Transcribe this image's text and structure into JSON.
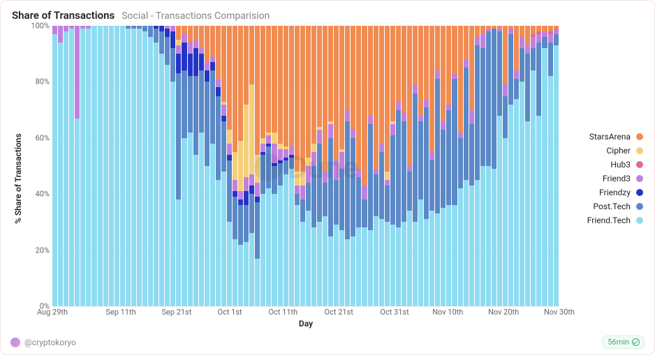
{
  "header": {
    "title": "Share of Transactions",
    "subtitle": "Social - Transactions Comparision"
  },
  "chart": {
    "type": "stacked-bar-100pct",
    "y_label": "% Share of Transactions",
    "x_label": "Day",
    "y_ticks": [
      0,
      20,
      40,
      60,
      80,
      100
    ],
    "y_tick_suffix": "%",
    "ylim": [
      0,
      100
    ],
    "background_color": "#ffffff",
    "grid_color": "#eeeeee",
    "tick_fontsize": 11,
    "label_fontsize": 12,
    "x_ticks": [
      {
        "pos": 0.0,
        "label": "Aug 29th"
      },
      {
        "pos": 0.135,
        "label": "Sep 11th"
      },
      {
        "pos": 0.245,
        "label": "Sep 21st"
      },
      {
        "pos": 0.35,
        "label": "Oct 1st"
      },
      {
        "pos": 0.455,
        "label": "Oct 11th"
      },
      {
        "pos": 0.565,
        "label": "Oct 21st"
      },
      {
        "pos": 0.675,
        "label": "Oct 31st"
      },
      {
        "pos": 0.78,
        "label": "Nov 10th"
      },
      {
        "pos": 0.89,
        "label": "Nov 20th"
      },
      {
        "pos": 1.0,
        "label": "Nov 30th"
      }
    ],
    "series": [
      {
        "key": "friend_tech",
        "label": "Friend.Tech",
        "color": "#8fdcf2"
      },
      {
        "key": "post_tech",
        "label": "Post.Tech",
        "color": "#5b88c6"
      },
      {
        "key": "friendzy",
        "label": "Friendzy",
        "color": "#2334c7"
      },
      {
        "key": "friend3",
        "label": "Friend3",
        "color": "#c180e0"
      },
      {
        "key": "hub3",
        "label": "Hub3",
        "color": "#e06b8b"
      },
      {
        "key": "cipher",
        "label": "Cipher",
        "color": "#f4ce7a"
      },
      {
        "key": "stars_arena",
        "label": "StarsArena",
        "color": "#f08c52"
      }
    ],
    "legend_order": [
      "stars_arena",
      "cipher",
      "hub3",
      "friend3",
      "friendzy",
      "post_tech",
      "friend_tech"
    ],
    "days": [
      {
        "friend_tech": 97,
        "post_tech": 0,
        "friendzy": 0,
        "friend3": 3,
        "hub3": 0,
        "cipher": 0,
        "stars_arena": 0
      },
      {
        "friend_tech": 94,
        "post_tech": 0,
        "friendzy": 0,
        "friend3": 6,
        "hub3": 0,
        "cipher": 0,
        "stars_arena": 0
      },
      {
        "friend_tech": 98,
        "post_tech": 0,
        "friendzy": 0,
        "friend3": 2,
        "hub3": 0,
        "cipher": 0,
        "stars_arena": 0
      },
      {
        "friend_tech": 99,
        "post_tech": 0,
        "friendzy": 0,
        "friend3": 1,
        "hub3": 0,
        "cipher": 0,
        "stars_arena": 0
      },
      {
        "friend_tech": 67,
        "post_tech": 0,
        "friendzy": 0,
        "friend3": 33,
        "hub3": 0,
        "cipher": 0,
        "stars_arena": 0
      },
      {
        "friend_tech": 99,
        "post_tech": 0,
        "friendzy": 0,
        "friend3": 1,
        "hub3": 0,
        "cipher": 0,
        "stars_arena": 0
      },
      {
        "friend_tech": 99,
        "post_tech": 0,
        "friendzy": 0,
        "friend3": 1,
        "hub3": 0,
        "cipher": 0,
        "stars_arena": 0
      },
      {
        "friend_tech": 100,
        "post_tech": 0,
        "friendzy": 0,
        "friend3": 0,
        "hub3": 0,
        "cipher": 0,
        "stars_arena": 0
      },
      {
        "friend_tech": 100,
        "post_tech": 0,
        "friendzy": 0,
        "friend3": 0,
        "hub3": 0,
        "cipher": 0,
        "stars_arena": 0
      },
      {
        "friend_tech": 100,
        "post_tech": 0,
        "friendzy": 0,
        "friend3": 0,
        "hub3": 0,
        "cipher": 0,
        "stars_arena": 0
      },
      {
        "friend_tech": 100,
        "post_tech": 0,
        "friendzy": 0,
        "friend3": 0,
        "hub3": 0,
        "cipher": 0,
        "stars_arena": 0
      },
      {
        "friend_tech": 100,
        "post_tech": 0,
        "friendzy": 0,
        "friend3": 0,
        "hub3": 0,
        "cipher": 0,
        "stars_arena": 0
      },
      {
        "friend_tech": 100,
        "post_tech": 0,
        "friendzy": 0,
        "friend3": 0,
        "hub3": 0,
        "cipher": 0,
        "stars_arena": 0
      },
      {
        "friend_tech": 99,
        "post_tech": 1,
        "friendzy": 0,
        "friend3": 0,
        "hub3": 0,
        "cipher": 0,
        "stars_arena": 0
      },
      {
        "friend_tech": 99,
        "post_tech": 1,
        "friendzy": 0,
        "friend3": 0,
        "hub3": 0,
        "cipher": 0,
        "stars_arena": 0
      },
      {
        "friend_tech": 99,
        "post_tech": 1,
        "friendzy": 0,
        "friend3": 0,
        "hub3": 0,
        "cipher": 0,
        "stars_arena": 0
      },
      {
        "friend_tech": 98,
        "post_tech": 2,
        "friendzy": 0,
        "friend3": 0,
        "hub3": 0,
        "cipher": 0,
        "stars_arena": 0
      },
      {
        "friend_tech": 96,
        "post_tech": 4,
        "friendzy": 0,
        "friend3": 0,
        "hub3": 0,
        "cipher": 0,
        "stars_arena": 0
      },
      {
        "friend_tech": 94,
        "post_tech": 5,
        "friendzy": 1,
        "friend3": 0,
        "hub3": 0,
        "cipher": 0,
        "stars_arena": 0
      },
      {
        "friend_tech": 90,
        "post_tech": 8,
        "friendzy": 2,
        "friend3": 0,
        "hub3": 0,
        "cipher": 0,
        "stars_arena": 0
      },
      {
        "friend_tech": 86,
        "post_tech": 10,
        "friendzy": 3,
        "friend3": 1,
        "hub3": 0,
        "cipher": 0,
        "stars_arena": 0
      },
      {
        "friend_tech": 80,
        "post_tech": 12,
        "friendzy": 6,
        "friend3": 2,
        "hub3": 0,
        "cipher": 0,
        "stars_arena": 0
      },
      {
        "friend_tech": 38,
        "post_tech": 45,
        "friendzy": 7,
        "friend3": 3,
        "hub3": 0,
        "cipher": 2,
        "stars_arena": 5
      },
      {
        "friend_tech": 60,
        "post_tech": 24,
        "friendzy": 10,
        "friend3": 3,
        "hub3": 0,
        "cipher": 0,
        "stars_arena": 3
      },
      {
        "friend_tech": 62,
        "post_tech": 20,
        "friendzy": 8,
        "friend3": 4,
        "hub3": 0,
        "cipher": 0,
        "stars_arena": 6
      },
      {
        "friend_tech": 54,
        "post_tech": 28,
        "friendzy": 10,
        "friend3": 3,
        "hub3": 0,
        "cipher": 0,
        "stars_arena": 5
      },
      {
        "friend_tech": 62,
        "post_tech": 22,
        "friendzy": 6,
        "friend3": 2,
        "hub3": 0,
        "cipher": 0,
        "stars_arena": 8
      },
      {
        "friend_tech": 50,
        "post_tech": 30,
        "friendzy": 4,
        "friend3": 3,
        "hub3": 0,
        "cipher": 0,
        "stars_arena": 13
      },
      {
        "friend_tech": 58,
        "post_tech": 26,
        "friendzy": 3,
        "friend3": 2,
        "hub3": 0,
        "cipher": 0,
        "stars_arena": 11
      },
      {
        "friend_tech": 45,
        "post_tech": 30,
        "friendzy": 3,
        "friend3": 3,
        "hub3": 0,
        "cipher": 0,
        "stars_arena": 19
      },
      {
        "friend_tech": 48,
        "post_tech": 18,
        "friendzy": 2,
        "friend3": 4,
        "hub3": 0,
        "cipher": 1,
        "stars_arena": 27
      },
      {
        "friend_tech": 30,
        "post_tech": 22,
        "friendzy": 2,
        "friend3": 4,
        "hub3": 0,
        "cipher": 5,
        "stars_arena": 37
      },
      {
        "friend_tech": 24,
        "post_tech": 15,
        "friendzy": 2,
        "friend3": 4,
        "hub3": 0,
        "cipher": 10,
        "stars_arena": 45
      },
      {
        "friend_tech": 22,
        "post_tech": 14,
        "friendzy": 2,
        "friend3": 3,
        "hub3": 0,
        "cipher": 18,
        "stars_arena": 41
      },
      {
        "friend_tech": 23,
        "post_tech": 13,
        "friendzy": 5,
        "friend3": 5,
        "hub3": 0,
        "cipher": 26,
        "stars_arena": 28
      },
      {
        "friend_tech": 26,
        "post_tech": 14,
        "friendzy": 3,
        "friend3": 4,
        "hub3": 0,
        "cipher": 32,
        "stars_arena": 21
      },
      {
        "friend_tech": 17,
        "post_tech": 20,
        "friendzy": 2,
        "friend3": 5,
        "hub3": 0,
        "cipher": 10,
        "stars_arena": 46
      },
      {
        "friend_tech": 40,
        "post_tech": 14,
        "friendzy": 1,
        "friend3": 3,
        "hub3": 0,
        "cipher": 2,
        "stars_arena": 40
      },
      {
        "friend_tech": 42,
        "post_tech": 15,
        "friendzy": 1,
        "friend3": 3,
        "hub3": 0,
        "cipher": 1,
        "stars_arena": 38
      },
      {
        "friend_tech": 40,
        "post_tech": 10,
        "friendzy": 1,
        "friend3": 7,
        "hub3": 0,
        "cipher": 4,
        "stars_arena": 38
      },
      {
        "friend_tech": 43,
        "post_tech": 8,
        "friendzy": 1,
        "friend3": 4,
        "hub3": 0,
        "cipher": 2,
        "stars_arena": 42
      },
      {
        "friend_tech": 47,
        "post_tech": 5,
        "friendzy": 1,
        "friend3": 3,
        "hub3": 0,
        "cipher": 1,
        "stars_arena": 43
      },
      {
        "friend_tech": 49,
        "post_tech": 4,
        "friendzy": 1,
        "friend3": 3,
        "hub3": 0,
        "cipher": 0,
        "stars_arena": 43
      },
      {
        "friend_tech": 36,
        "post_tech": 4,
        "friendzy": 0,
        "friend3": 3,
        "hub3": 0,
        "cipher": 5,
        "stars_arena": 52
      },
      {
        "friend_tech": 30,
        "post_tech": 8,
        "friendzy": 0,
        "friend3": 5,
        "hub3": 0,
        "cipher": 5,
        "stars_arena": 52
      },
      {
        "friend_tech": 34,
        "post_tech": 10,
        "friendzy": 0,
        "friend3": 6,
        "hub3": 0,
        "cipher": 3,
        "stars_arena": 47
      },
      {
        "friend_tech": 28,
        "post_tech": 22,
        "friendzy": 0,
        "friend3": 5,
        "hub3": 0,
        "cipher": 3,
        "stars_arena": 42
      },
      {
        "friend_tech": 30,
        "post_tech": 28,
        "friendzy": 0,
        "friend3": 5,
        "hub3": 0,
        "cipher": 1,
        "stars_arena": 36
      },
      {
        "friend_tech": 32,
        "post_tech": 12,
        "friendzy": 0,
        "friend3": 4,
        "hub3": 0,
        "cipher": 0,
        "stars_arena": 52
      },
      {
        "friend_tech": 25,
        "post_tech": 35,
        "friendzy": 0,
        "friend3": 5,
        "hub3": 0,
        "cipher": 1,
        "stars_arena": 34
      },
      {
        "friend_tech": 29,
        "post_tech": 16,
        "friendzy": 0,
        "friend3": 7,
        "hub3": 0,
        "cipher": 0,
        "stars_arena": 48
      },
      {
        "friend_tech": 27,
        "post_tech": 22,
        "friendzy": 0,
        "friend3": 6,
        "hub3": 0,
        "cipher": 1,
        "stars_arena": 44
      },
      {
        "friend_tech": 24,
        "post_tech": 42,
        "friendzy": 0,
        "friend3": 4,
        "hub3": 0,
        "cipher": 0,
        "stars_arena": 30
      },
      {
        "friend_tech": 25,
        "post_tech": 35,
        "friendzy": 0,
        "friend3": 3,
        "hub3": 0,
        "cipher": 0,
        "stars_arena": 37
      },
      {
        "friend_tech": 28,
        "post_tech": 18,
        "friendzy": 0,
        "friend3": 3,
        "hub3": 0,
        "cipher": 0,
        "stars_arena": 51
      },
      {
        "friend_tech": 28,
        "post_tech": 10,
        "friendzy": 0,
        "friend3": 5,
        "hub3": 0,
        "cipher": 0,
        "stars_arena": 57
      },
      {
        "friend_tech": 27,
        "post_tech": 38,
        "friendzy": 0,
        "friend3": 3,
        "hub3": 0,
        "cipher": 0,
        "stars_arena": 32
      },
      {
        "friend_tech": 32,
        "post_tech": 15,
        "friendzy": 0,
        "friend3": 2,
        "hub3": 0,
        "cipher": 0,
        "stars_arena": 51
      },
      {
        "friend_tech": 31,
        "post_tech": 24,
        "friendzy": 0,
        "friend3": 3,
        "hub3": 0,
        "cipher": 0,
        "stars_arena": 42
      },
      {
        "friend_tech": 30,
        "post_tech": 13,
        "friendzy": 0,
        "friend3": 2,
        "hub3": 0,
        "cipher": 3,
        "stars_arena": 52
      },
      {
        "friend_tech": 29,
        "post_tech": 32,
        "friendzy": 0,
        "friend3": 4,
        "hub3": 0,
        "cipher": 1,
        "stars_arena": 34
      },
      {
        "friend_tech": 28,
        "post_tech": 42,
        "friendzy": 0,
        "friend3": 3,
        "hub3": 0,
        "cipher": 0,
        "stars_arena": 27
      },
      {
        "friend_tech": 30,
        "post_tech": 36,
        "friendzy": 0,
        "friend3": 3,
        "hub3": 0,
        "cipher": 0,
        "stars_arena": 31
      },
      {
        "friend_tech": 34,
        "post_tech": 14,
        "friendzy": 0,
        "friend3": 2,
        "hub3": 0,
        "cipher": 0,
        "stars_arena": 50
      },
      {
        "friend_tech": 30,
        "post_tech": 46,
        "friendzy": 0,
        "friend3": 3,
        "hub3": 0,
        "cipher": 0,
        "stars_arena": 21
      },
      {
        "friend_tech": 38,
        "post_tech": 28,
        "friendzy": 0,
        "friend3": 2,
        "hub3": 0,
        "cipher": 0,
        "stars_arena": 32
      },
      {
        "friend_tech": 31,
        "post_tech": 40,
        "friendzy": 0,
        "friend3": 3,
        "hub3": 0,
        "cipher": 0,
        "stars_arena": 26
      },
      {
        "friend_tech": 34,
        "post_tech": 18,
        "friendzy": 0,
        "friend3": 3,
        "hub3": 0,
        "cipher": 0,
        "stars_arena": 45
      },
      {
        "friend_tech": 33,
        "post_tech": 48,
        "friendzy": 0,
        "friend3": 3,
        "hub3": 0,
        "cipher": 0,
        "stars_arena": 16
      },
      {
        "friend_tech": 35,
        "post_tech": 28,
        "friendzy": 0,
        "friend3": 3,
        "hub3": 0,
        "cipher": 0,
        "stars_arena": 34
      },
      {
        "friend_tech": 36,
        "post_tech": 34,
        "friendzy": 0,
        "friend3": 2,
        "hub3": 0,
        "cipher": 0,
        "stars_arena": 28
      },
      {
        "friend_tech": 36,
        "post_tech": 45,
        "friendzy": 0,
        "friend3": 2,
        "hub3": 0,
        "cipher": 0,
        "stars_arena": 17
      },
      {
        "friend_tech": 42,
        "post_tech": 18,
        "friendzy": 0,
        "friend3": 2,
        "hub3": 0,
        "cipher": 0,
        "stars_arena": 38
      },
      {
        "friend_tech": 45,
        "post_tech": 40,
        "friendzy": 0,
        "friend3": 3,
        "hub3": 0,
        "cipher": 0,
        "stars_arena": 12
      },
      {
        "friend_tech": 43,
        "post_tech": 22,
        "friendzy": 0,
        "friend3": 5,
        "hub3": 0,
        "cipher": 0,
        "stars_arena": 30
      },
      {
        "friend_tech": 45,
        "post_tech": 48,
        "friendzy": 0,
        "friend3": 3,
        "hub3": 0,
        "cipher": 0,
        "stars_arena": 4
      },
      {
        "friend_tech": 50,
        "post_tech": 42,
        "friendzy": 0,
        "friend3": 5,
        "hub3": 0,
        "cipher": 0,
        "stars_arena": 3
      },
      {
        "friend_tech": 50,
        "post_tech": 48,
        "friendzy": 0,
        "friend3": 1,
        "hub3": 0,
        "cipher": 0,
        "stars_arena": 1
      },
      {
        "friend_tech": 49,
        "post_tech": 50,
        "friendzy": 0,
        "friend3": 0,
        "hub3": 0,
        "cipher": 0,
        "stars_arena": 1
      },
      {
        "friend_tech": 68,
        "post_tech": 30,
        "friendzy": 0,
        "friend3": 1,
        "hub3": 0,
        "cipher": 0,
        "stars_arena": 1
      },
      {
        "friend_tech": 60,
        "post_tech": 15,
        "friendzy": 0,
        "friend3": 4,
        "hub3": 0,
        "cipher": 0,
        "stars_arena": 21
      },
      {
        "friend_tech": 72,
        "post_tech": 25,
        "friendzy": 0,
        "friend3": 2,
        "hub3": 0,
        "cipher": 0,
        "stars_arena": 1
      },
      {
        "friend_tech": 74,
        "post_tech": 7,
        "friendzy": 0,
        "friend3": 3,
        "hub3": 0,
        "cipher": 0,
        "stars_arena": 16
      },
      {
        "friend_tech": 80,
        "post_tech": 12,
        "friendzy": 0,
        "friend3": 4,
        "hub3": 0,
        "cipher": 0,
        "stars_arena": 4
      },
      {
        "friend_tech": 66,
        "post_tech": 24,
        "friendzy": 0,
        "friend3": 3,
        "hub3": 0,
        "cipher": 0,
        "stars_arena": 7
      },
      {
        "friend_tech": 84,
        "post_tech": 8,
        "friendzy": 0,
        "friend3": 4,
        "hub3": 1,
        "cipher": 0,
        "stars_arena": 3
      },
      {
        "friend_tech": 68,
        "post_tech": 26,
        "friendzy": 0,
        "friend3": 3,
        "hub3": 1,
        "cipher": 0,
        "stars_arena": 2
      },
      {
        "friend_tech": 92,
        "post_tech": 4,
        "friendzy": 0,
        "friend3": 2,
        "hub3": 0,
        "cipher": 0,
        "stars_arena": 2
      },
      {
        "friend_tech": 82,
        "post_tech": 12,
        "friendzy": 0,
        "friend3": 3,
        "hub3": 1,
        "cipher": 0,
        "stars_arena": 2
      },
      {
        "friend_tech": 93,
        "post_tech": 4,
        "friendzy": 0,
        "friend3": 2,
        "hub3": 0,
        "cipher": 0,
        "stars_arena": 1
      }
    ]
  },
  "footer": {
    "author": "@cryptokoryo",
    "age": "56min"
  },
  "watermark": "Dune"
}
